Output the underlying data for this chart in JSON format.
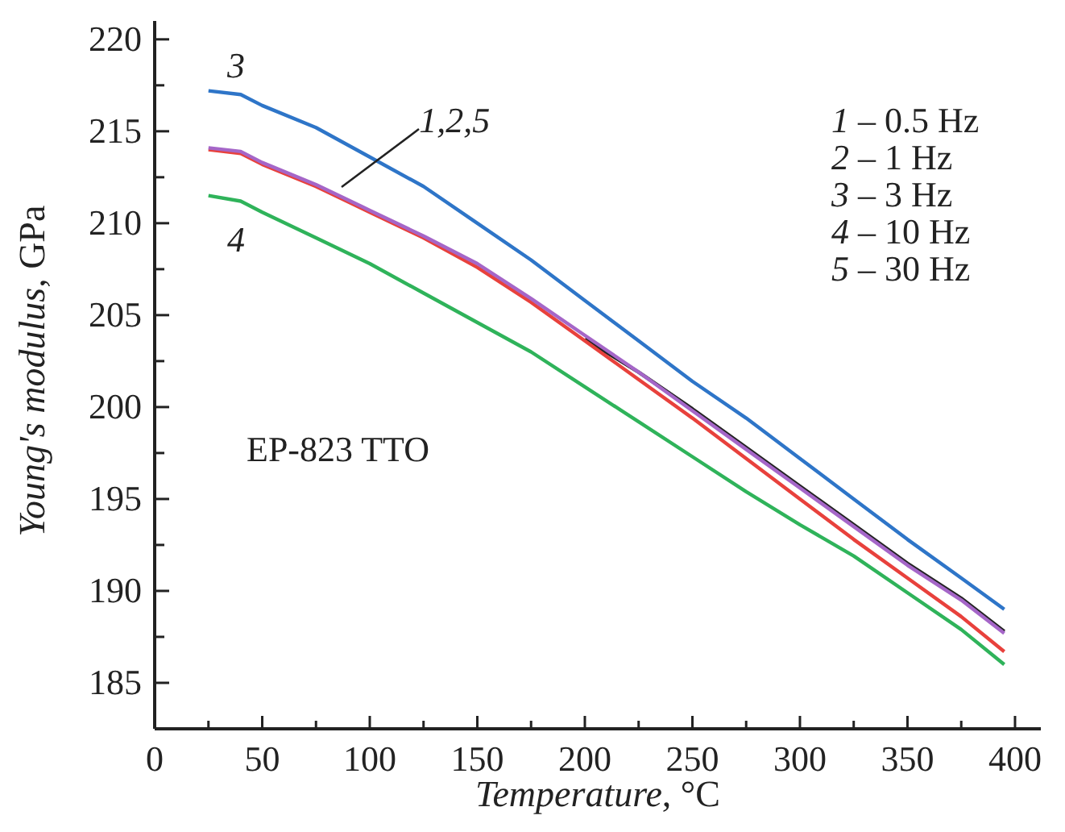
{
  "chart_data": {
    "type": "line",
    "xlabel": "Temperature, °C",
    "ylabel": "Young's modulus, GPa",
    "x": [
      25,
      40,
      50,
      75,
      100,
      125,
      150,
      175,
      200,
      225,
      250,
      275,
      300,
      325,
      350,
      375,
      395
    ],
    "series": [
      {
        "color": "#222222",
        "values": [
          null,
          null,
          null,
          null,
          null,
          null,
          null,
          null,
          203.7,
          201.9,
          199.9,
          197.8,
          195.7,
          193.6,
          191.5,
          189.6,
          187.8
        ]
      },
      {
        "color": "#e8413c",
        "values": [
          214.0,
          213.8,
          213.2,
          212.0,
          210.6,
          209.2,
          207.6,
          205.7,
          203.6,
          201.5,
          199.4,
          197.2,
          195.0,
          192.8,
          190.7,
          188.6,
          186.7
        ]
      },
      {
        "color": "#2e75c8",
        "values": [
          217.2,
          217.0,
          216.4,
          215.2,
          213.6,
          212.0,
          210.0,
          208.0,
          205.8,
          203.6,
          201.4,
          199.4,
          197.2,
          195.0,
          192.8,
          190.7,
          189.0
        ]
      },
      {
        "color": "#2fb35a",
        "values": [
          211.5,
          211.2,
          210.6,
          209.2,
          207.8,
          206.2,
          204.6,
          203.0,
          201.1,
          199.2,
          197.3,
          195.4,
          193.6,
          191.9,
          189.9,
          187.9,
          186.0
        ]
      },
      {
        "color": "#a566c8",
        "values": [
          214.1,
          213.9,
          213.3,
          212.1,
          210.7,
          209.3,
          207.8,
          205.9,
          203.9,
          201.9,
          199.8,
          197.7,
          195.6,
          193.5,
          191.4,
          189.5,
          187.7
        ]
      }
    ],
    "xlim": [
      0,
      412
    ],
    "ylim": [
      182.5,
      221
    ],
    "xticks": [
      0,
      {
        "value": 25,
        "label": null
      },
      50,
      {
        "value": 75,
        "label": null
      },
      100,
      {
        "value": 125,
        "label": null
      },
      150,
      {
        "value": 175,
        "label": null
      },
      200,
      {
        "value": 225,
        "label": null
      },
      250,
      {
        "value": 275,
        "label": null
      },
      300,
      {
        "value": 325,
        "label": null
      },
      350,
      {
        "value": 375,
        "label": null
      },
      400
    ],
    "yticks": [
      185,
      {
        "value": 187.5,
        "label": null
      },
      190,
      {
        "value": 192.5,
        "label": null
      },
      195,
      {
        "value": 197.5,
        "label": null
      },
      200,
      {
        "value": 202.5,
        "label": null
      },
      205,
      {
        "value": 207.5,
        "label": null
      },
      210,
      {
        "value": 212.5,
        "label": null
      },
      215,
      {
        "value": 217.5,
        "label": null
      },
      220
    ],
    "annotations": [
      "3",
      "4",
      {
        "text": "1,2,5",
        "x": 87,
        "y": 212
      },
      "1 – 0.5 Hz",
      "2 – 1 Hz",
      "3 – 3 Hz",
      "4 – 10 Hz",
      "5 – 30 Hz",
      "EP-823 TTO"
    ],
    "grid": false,
    "legend": false,
    "marker": "none",
    "line_style": "solid"
  }
}
